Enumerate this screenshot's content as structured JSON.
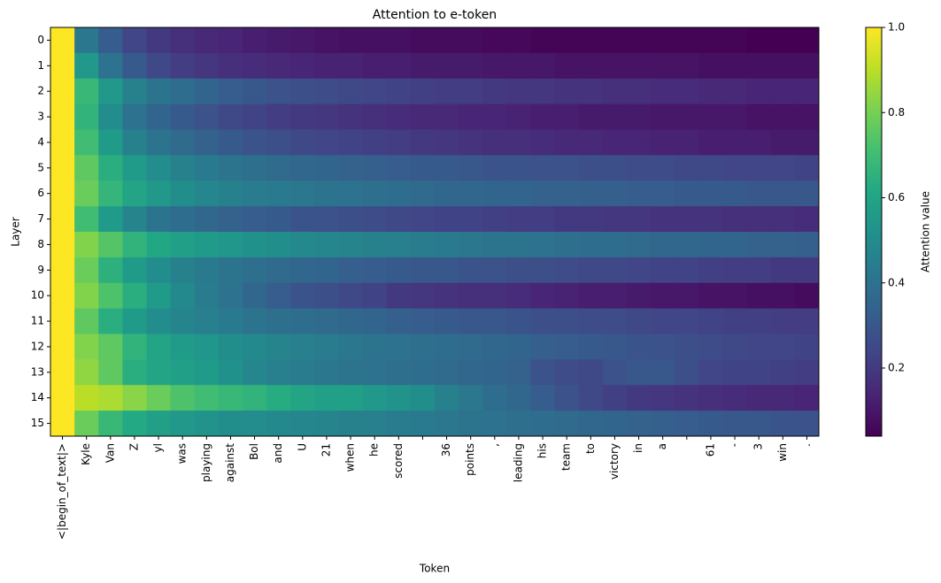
{
  "chart_data": {
    "type": "heatmap",
    "title": "Attention to e-token",
    "xlabel": "Token",
    "ylabel": "Layer",
    "colorbar_label": "Attention value",
    "colormap": "viridis",
    "clim": [
      0.04,
      1.0
    ],
    "cticks": [
      0.2,
      0.4,
      0.6,
      0.8,
      {
        "value": 1.0,
        "label": "1.0"
      }
    ],
    "categories": [
      "<|begin_of_text|>",
      "Kyle",
      "Van",
      "Z",
      "yl",
      "was",
      "playing",
      "against",
      "Bol",
      "and",
      "U",
      "21",
      "when",
      "he",
      "scored",
      null,
      "36",
      "points",
      ",",
      "leading",
      "his",
      "team",
      "to",
      "victory",
      "in",
      "a",
      null,
      "61",
      "-",
      "3",
      "win",
      "."
    ],
    "rows": [
      0,
      1,
      2,
      3,
      4,
      5,
      6,
      7,
      8,
      9,
      10,
      11,
      12,
      13,
      14,
      15
    ],
    "values": [
      [
        1,
        0.42,
        0.32,
        0.24,
        0.2,
        0.17,
        0.15,
        0.14,
        0.12,
        0.11,
        0.1,
        0.09,
        0.08,
        0.08,
        0.08,
        0.07,
        0.07,
        0.07,
        0.06,
        0.06,
        0.05,
        0.05,
        0.05,
        0.05,
        0.05,
        0.05,
        0.05,
        0.05,
        0.05,
        0.04,
        0.04,
        0.04
      ],
      [
        1,
        0.55,
        0.4,
        0.31,
        0.25,
        0.21,
        0.19,
        0.17,
        0.16,
        0.15,
        0.14,
        0.13,
        0.13,
        0.12,
        0.12,
        0.11,
        0.11,
        0.11,
        0.1,
        0.1,
        0.1,
        0.09,
        0.09,
        0.09,
        0.09,
        0.09,
        0.09,
        0.08,
        0.08,
        0.08,
        0.08,
        0.08
      ],
      [
        1,
        0.68,
        0.55,
        0.46,
        0.41,
        0.38,
        0.35,
        0.32,
        0.3,
        0.28,
        0.27,
        0.26,
        0.25,
        0.24,
        0.23,
        0.22,
        0.21,
        0.21,
        0.2,
        0.19,
        0.19,
        0.18,
        0.18,
        0.17,
        0.17,
        0.16,
        0.16,
        0.15,
        0.15,
        0.14,
        0.14,
        0.14
      ],
      [
        1,
        0.66,
        0.5,
        0.4,
        0.35,
        0.31,
        0.28,
        0.25,
        0.23,
        0.21,
        0.2,
        0.19,
        0.18,
        0.17,
        0.16,
        0.15,
        0.15,
        0.14,
        0.14,
        0.13,
        0.12,
        0.12,
        0.11,
        0.11,
        0.11,
        0.1,
        0.1,
        0.1,
        0.1,
        0.09,
        0.09,
        0.09
      ],
      [
        1,
        0.7,
        0.56,
        0.46,
        0.41,
        0.37,
        0.34,
        0.31,
        0.29,
        0.27,
        0.25,
        0.24,
        0.23,
        0.22,
        0.21,
        0.2,
        0.19,
        0.18,
        0.17,
        0.17,
        0.16,
        0.15,
        0.15,
        0.14,
        0.14,
        0.13,
        0.13,
        0.12,
        0.12,
        0.12,
        0.11,
        0.11
      ],
      [
        1,
        0.76,
        0.64,
        0.56,
        0.5,
        0.46,
        0.43,
        0.41,
        0.39,
        0.37,
        0.36,
        0.35,
        0.34,
        0.33,
        0.32,
        0.31,
        0.31,
        0.3,
        0.29,
        0.29,
        0.28,
        0.28,
        0.27,
        0.27,
        0.26,
        0.26,
        0.25,
        0.25,
        0.24,
        0.24,
        0.24,
        0.23
      ],
      [
        1,
        0.78,
        0.67,
        0.6,
        0.55,
        0.51,
        0.48,
        0.46,
        0.44,
        0.43,
        0.42,
        0.41,
        0.4,
        0.39,
        0.38,
        0.37,
        0.36,
        0.36,
        0.35,
        0.35,
        0.34,
        0.34,
        0.33,
        0.33,
        0.32,
        0.32,
        0.31,
        0.31,
        0.31,
        0.3,
        0.3,
        0.3
      ],
      [
        1,
        0.7,
        0.56,
        0.47,
        0.41,
        0.38,
        0.36,
        0.34,
        0.32,
        0.31,
        0.29,
        0.28,
        0.27,
        0.26,
        0.25,
        0.24,
        0.23,
        0.23,
        0.22,
        0.21,
        0.21,
        0.2,
        0.2,
        0.19,
        0.19,
        0.18,
        0.18,
        0.18,
        0.17,
        0.17,
        0.17,
        0.16
      ],
      [
        1,
        0.82,
        0.74,
        0.66,
        0.61,
        0.58,
        0.56,
        0.54,
        0.52,
        0.51,
        0.49,
        0.48,
        0.47,
        0.46,
        0.45,
        0.44,
        0.43,
        0.42,
        0.41,
        0.41,
        0.4,
        0.39,
        0.38,
        0.38,
        0.37,
        0.36,
        0.36,
        0.35,
        0.35,
        0.34,
        0.34,
        0.33
      ],
      [
        1,
        0.78,
        0.65,
        0.56,
        0.5,
        0.46,
        0.43,
        0.41,
        0.39,
        0.37,
        0.36,
        0.35,
        0.33,
        0.32,
        0.31,
        0.3,
        0.3,
        0.29,
        0.28,
        0.27,
        0.27,
        0.26,
        0.25,
        0.25,
        0.24,
        0.23,
        0.23,
        0.22,
        0.21,
        0.21,
        0.2,
        0.2
      ],
      [
        1,
        0.82,
        0.73,
        0.64,
        0.56,
        0.49,
        0.44,
        0.4,
        0.36,
        0.32,
        0.29,
        0.27,
        0.25,
        0.23,
        0.2,
        0.19,
        0.18,
        0.17,
        0.17,
        0.16,
        0.14,
        0.13,
        0.12,
        0.12,
        0.11,
        0.1,
        0.1,
        0.09,
        0.09,
        0.08,
        0.08,
        0.07
      ],
      [
        1,
        0.76,
        0.64,
        0.56,
        0.5,
        0.47,
        0.45,
        0.43,
        0.41,
        0.39,
        0.38,
        0.37,
        0.36,
        0.35,
        0.33,
        0.32,
        0.31,
        0.3,
        0.3,
        0.29,
        0.27,
        0.27,
        0.26,
        0.26,
        0.25,
        0.24,
        0.24,
        0.23,
        0.22,
        0.22,
        0.21,
        0.21
      ],
      [
        1,
        0.82,
        0.76,
        0.66,
        0.6,
        0.56,
        0.54,
        0.51,
        0.49,
        0.47,
        0.45,
        0.44,
        0.42,
        0.41,
        0.4,
        0.39,
        0.38,
        0.37,
        0.36,
        0.35,
        0.33,
        0.32,
        0.31,
        0.3,
        0.29,
        0.28,
        0.27,
        0.26,
        0.25,
        0.24,
        0.24,
        0.23
      ],
      [
        1,
        0.84,
        0.76,
        0.64,
        0.6,
        0.58,
        0.56,
        0.52,
        0.48,
        0.45,
        0.44,
        0.42,
        0.41,
        0.4,
        0.39,
        0.38,
        0.37,
        0.36,
        0.35,
        0.34,
        0.28,
        0.26,
        0.25,
        0.28,
        0.3,
        0.3,
        0.27,
        0.24,
        0.23,
        0.23,
        0.22,
        0.21
      ],
      [
        1,
        0.9,
        0.88,
        0.83,
        0.78,
        0.73,
        0.7,
        0.68,
        0.66,
        0.63,
        0.6,
        0.58,
        0.58,
        0.55,
        0.53,
        0.51,
        0.46,
        0.42,
        0.38,
        0.36,
        0.32,
        0.28,
        0.25,
        0.22,
        0.2,
        0.19,
        0.18,
        0.17,
        0.16,
        0.15,
        0.15,
        0.14
      ],
      [
        1,
        0.78,
        0.68,
        0.62,
        0.58,
        0.55,
        0.53,
        0.51,
        0.5,
        0.49,
        0.48,
        0.47,
        0.46,
        0.45,
        0.44,
        0.43,
        0.42,
        0.41,
        0.4,
        0.39,
        0.38,
        0.37,
        0.36,
        0.35,
        0.34,
        0.33,
        0.32,
        0.31,
        0.3,
        0.3,
        0.29,
        0.28
      ]
    ]
  }
}
